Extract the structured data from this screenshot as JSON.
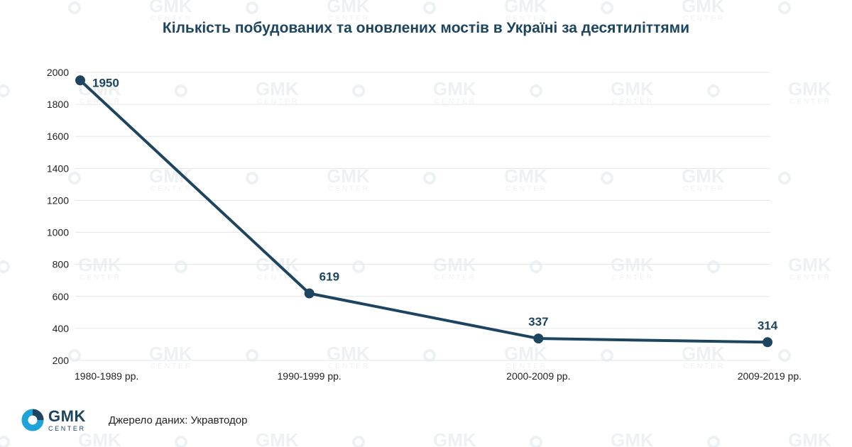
{
  "chart_data": {
    "type": "line",
    "title": "Кількість побудованих та оновлених мостів в Україні за десятиліттями",
    "categories": [
      "1980-1989 рр.",
      "1990-1999 рр.",
      "2000-2009 рр.",
      "2009-2019 рр."
    ],
    "values": [
      1950,
      619,
      337,
      314
    ],
    "data_labels": [
      "1950",
      "619",
      "337",
      "314"
    ],
    "ylim": [
      200,
      2000
    ],
    "yticks": [
      200,
      400,
      600,
      800,
      1000,
      1200,
      1400,
      1600,
      1800,
      2000
    ],
    "grid": true,
    "legend": "none",
    "colors": {
      "line": "#1d4560",
      "grid": "#e6e6e6"
    }
  },
  "footer": {
    "logo_main": "GMK",
    "logo_sub": "CENTER",
    "source": "Джерело даних: Укравтодор"
  },
  "watermark": {
    "main": "GMK",
    "sub": "CENTER"
  },
  "icons": {
    "logo": "gmk-logo-ring-icon"
  }
}
